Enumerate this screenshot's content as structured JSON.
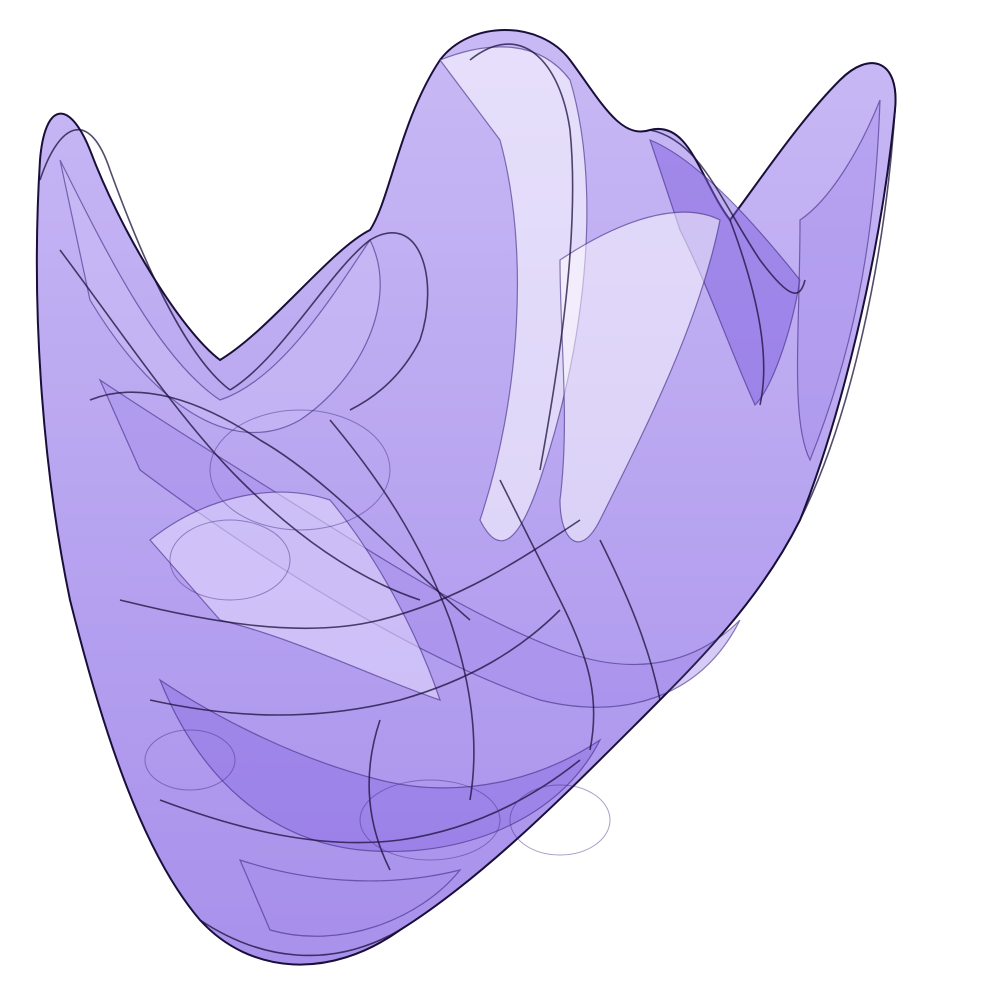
{
  "background_color": "#ffffff",
  "colors": {
    "fill_light": "#cbbcf6",
    "fill_mid": "#a58cec",
    "fill_deep": "#7d5ee0",
    "stroke_dark": "#1a0f3a",
    "stroke_mid": "#3d2a80"
  },
  "subject": "strange-attractor-fractal"
}
